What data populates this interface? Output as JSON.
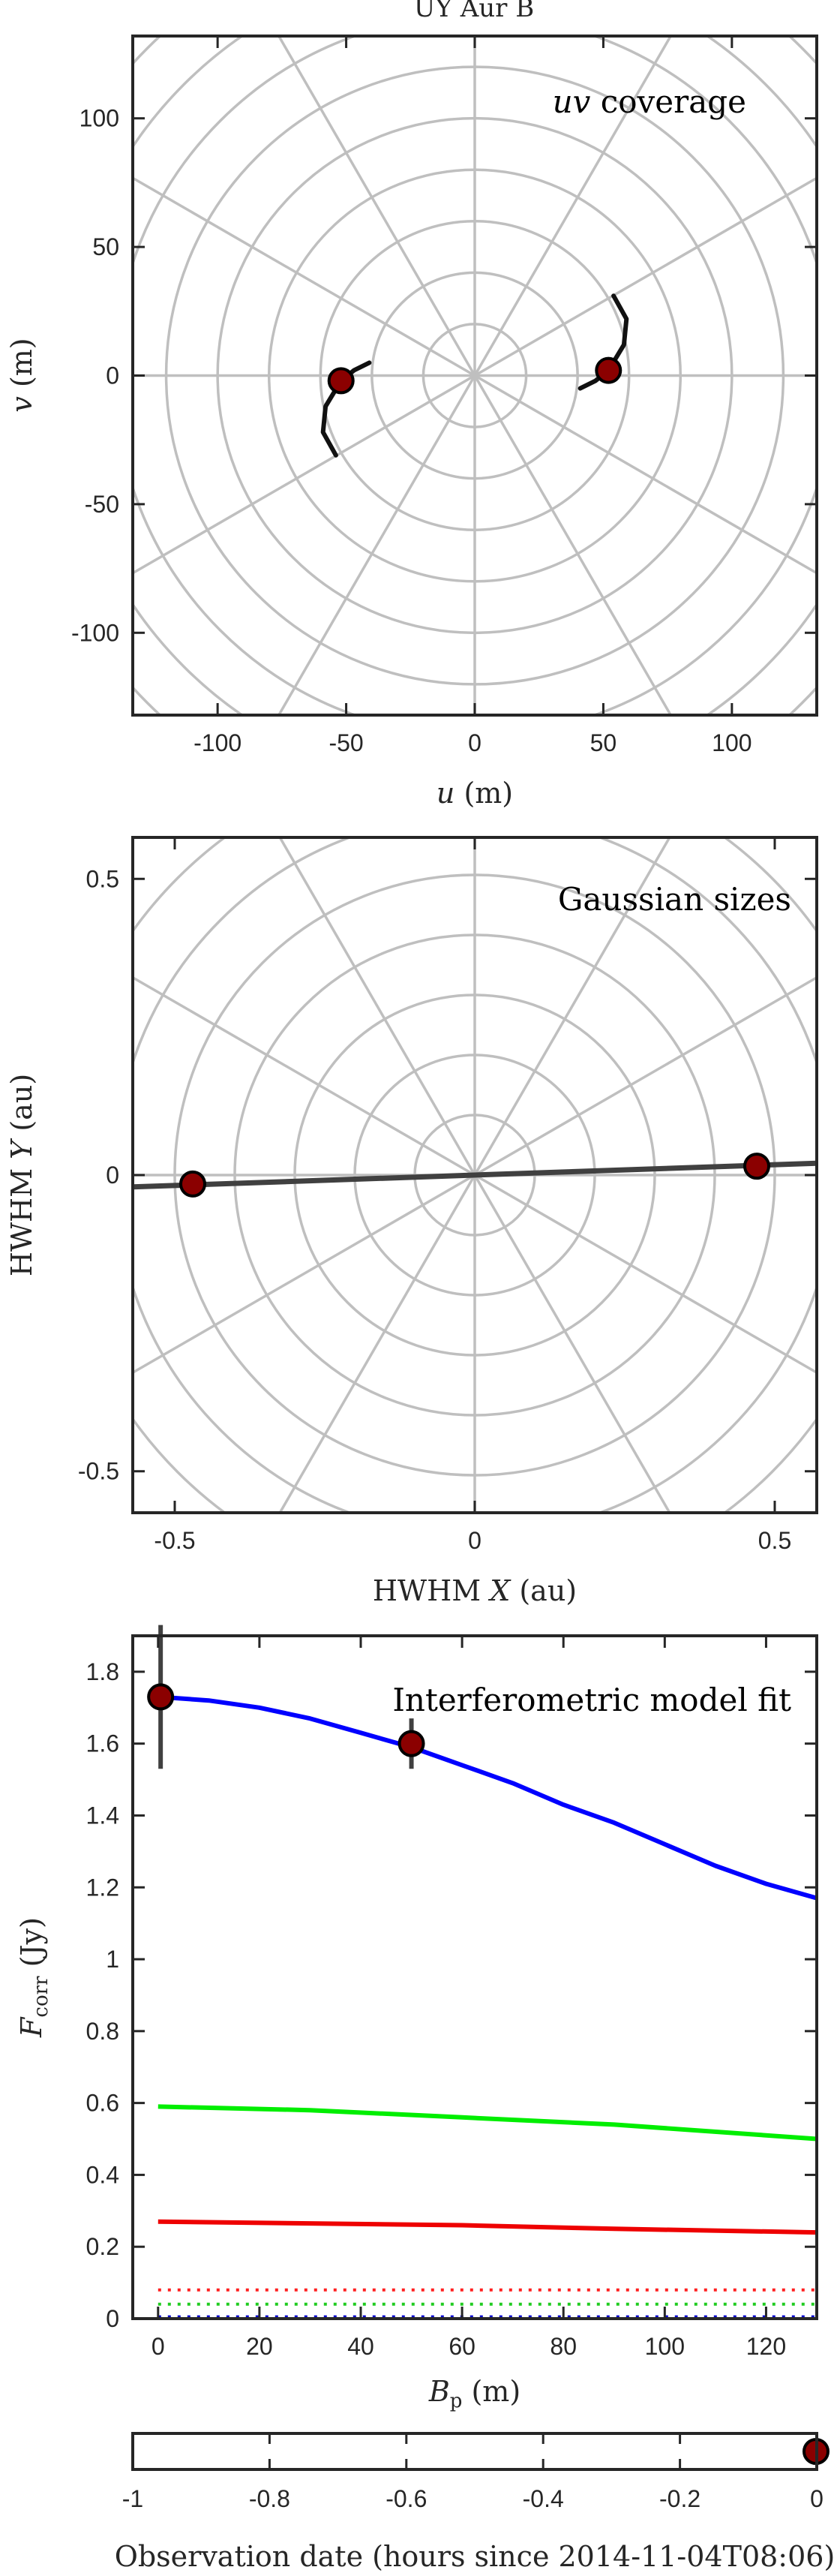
{
  "page_title": "UY Aur B",
  "colors": {
    "grid": "#bfbfbf",
    "axis": "#262626",
    "marker_fill": "#8b0000",
    "track": "#111111",
    "fit_line": "#404040",
    "total": "#0000ff",
    "comp_green": "#00ee00",
    "comp_red": "#ee0000",
    "dotted_red": "#ff2020",
    "dotted_green": "#20cc20",
    "dotted_blue": "#0000cc"
  },
  "chart_data": [
    {
      "id": "uv",
      "type": "scatter",
      "title": "uv coverage",
      "title_italic_part": "uv",
      "title_rest": " coverage",
      "xlabel_var": "u",
      "xlabel_unit": " (m)",
      "ylabel_var": "v",
      "ylabel_unit": " (m)",
      "xlim": [
        -133,
        133
      ],
      "ylim": [
        -132,
        132
      ],
      "xticks": [
        -100,
        -50,
        0,
        50,
        100
      ],
      "yticks": [
        -100,
        -50,
        0,
        50,
        100
      ],
      "xticklabels": [
        "-100",
        "-50",
        "0",
        "50",
        "100"
      ],
      "yticklabels": [
        "-100",
        "-50",
        "0",
        "50",
        "100"
      ],
      "polar_grid_radii": [
        20,
        40,
        60,
        80,
        100,
        120,
        140,
        160,
        180
      ],
      "polar_grid_angles_deg": [
        0,
        30,
        60,
        90,
        120,
        150
      ],
      "points": [
        {
          "x": -52,
          "y": -2
        },
        {
          "x": 52,
          "y": 2
        }
      ],
      "tracks": [
        [
          [
            -41,
            5
          ],
          [
            -47,
            2
          ],
          [
            -52,
            -2
          ],
          [
            -58,
            -12
          ],
          [
            -59,
            -22
          ],
          [
            -54,
            -31
          ]
        ],
        [
          [
            41,
            -5
          ],
          [
            47,
            -2
          ],
          [
            52,
            2
          ],
          [
            58,
            12
          ],
          [
            59,
            22
          ],
          [
            54,
            31
          ]
        ]
      ]
    },
    {
      "id": "gauss",
      "type": "scatter",
      "title": "Gaussian sizes",
      "xlabel_pre": "HWHM ",
      "xlabel_var": "X",
      "xlabel_unit": " (au)",
      "ylabel_pre": "HWHM ",
      "ylabel_var": "Y",
      "ylabel_unit": " (au)",
      "xlim": [
        -0.57,
        0.57
      ],
      "ylim": [
        -0.57,
        0.57
      ],
      "xticks": [
        -0.5,
        0,
        0.5
      ],
      "yticks": [
        -0.5,
        0,
        0.5
      ],
      "xticklabels": [
        "-0.5",
        "0",
        "0.5"
      ],
      "yticklabels": [
        "-0.5",
        "0",
        "0.5"
      ],
      "polar_grid_radii": [
        0.1,
        0.2,
        0.3,
        0.4,
        0.5,
        0.6,
        0.7,
        0.8
      ],
      "polar_grid_angles_deg": [
        0,
        30,
        60,
        90,
        120,
        150
      ],
      "line": [
        [
          -0.57,
          -0.02
        ],
        [
          0.57,
          0.02
        ]
      ],
      "points": [
        {
          "x": -0.47,
          "y": -0.015
        },
        {
          "x": 0.47,
          "y": 0.015
        }
      ]
    },
    {
      "id": "fcorr",
      "type": "line",
      "title": "Interferometric model fit",
      "xlabel_var": "B",
      "xlabel_sub": "p",
      "xlabel_unit": " (m)",
      "ylabel_var": "F",
      "ylabel_sub": "corr",
      "ylabel_unit": " (Jy)",
      "xlim": [
        -5,
        130
      ],
      "ylim": [
        0,
        1.9
      ],
      "xticks": [
        0,
        20,
        40,
        60,
        80,
        100,
        120
      ],
      "yticks": [
        0,
        0.2,
        0.4,
        0.6,
        0.8,
        1,
        1.2,
        1.4,
        1.6,
        1.8
      ],
      "xticklabels": [
        "0",
        "20",
        "40",
        "60",
        "80",
        "100",
        "120"
      ],
      "yticklabels": [
        "0",
        "0.2",
        "0.4",
        "0.6",
        "0.8",
        "1",
        "1.2",
        "1.4",
        "1.6",
        "1.8"
      ],
      "series": [
        {
          "color_key": "total",
          "style": "solid",
          "x": [
            0,
            10,
            20,
            30,
            40,
            50,
            60,
            70,
            80,
            90,
            100,
            110,
            120,
            130
          ],
          "y": [
            1.73,
            1.72,
            1.7,
            1.67,
            1.63,
            1.59,
            1.54,
            1.49,
            1.43,
            1.38,
            1.32,
            1.26,
            1.21,
            1.17
          ]
        },
        {
          "color_key": "comp_green",
          "style": "solid",
          "x": [
            0,
            30,
            60,
            90,
            130
          ],
          "y": [
            0.59,
            0.58,
            0.56,
            0.54,
            0.5
          ]
        },
        {
          "color_key": "comp_red",
          "style": "solid",
          "x": [
            0,
            30,
            60,
            90,
            130
          ],
          "y": [
            0.27,
            0.265,
            0.26,
            0.25,
            0.24
          ]
        },
        {
          "color_key": "dotted_red",
          "style": "dotted",
          "x": [
            0,
            130
          ],
          "y": [
            0.08,
            0.08
          ]
        },
        {
          "color_key": "dotted_green",
          "style": "dotted",
          "x": [
            0,
            130
          ],
          "y": [
            0.04,
            0.04
          ]
        },
        {
          "color_key": "dotted_blue",
          "style": "dotted",
          "x": [
            0,
            130
          ],
          "y": [
            0.005,
            0.005
          ]
        }
      ],
      "points": [
        {
          "x": 0.5,
          "y": 1.73,
          "yerr": 0.2
        },
        {
          "x": 50,
          "y": 1.6,
          "yerr": 0.07
        }
      ]
    },
    {
      "id": "time",
      "type": "scatter",
      "xlabel": "Observation date (hours since 2014-11-04T08:06)",
      "xlim": [
        -1,
        0
      ],
      "xticks": [
        -1,
        -0.8,
        -0.6,
        -0.4,
        -0.2,
        0
      ],
      "xticklabels": [
        "-1",
        "-0.8",
        "-0.6",
        "-0.4",
        "-0.2",
        "0"
      ],
      "points": [
        {
          "x": 0
        }
      ]
    }
  ]
}
